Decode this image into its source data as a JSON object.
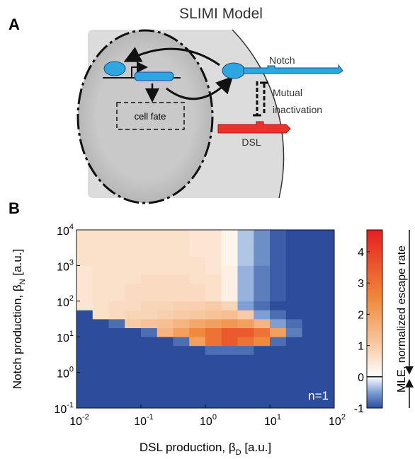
{
  "panel_a": {
    "label": "A",
    "title": "SLIMI Model",
    "cell_fate": "cell fate",
    "notch": "Notch",
    "mutual": "Mutual",
    "inactivation": "inactivation",
    "dsl": "DSL"
  },
  "chart_data": {
    "type": "heatmap",
    "panel_label": "B",
    "annotation": "n=1",
    "xlabel": {
      "text": "DSL production, β",
      "subscript": "D",
      "suffix": " [a.u.]"
    },
    "ylabel": {
      "text": "Notch production, β",
      "subscript": "N",
      "suffix": " [a.u.]"
    },
    "xscale": "log",
    "yscale": "log",
    "xlim": [
      0.01,
      100
    ],
    "ylim": [
      0.1,
      10000
    ],
    "xticks": [
      {
        "value": 0.01,
        "label": "10",
        "exponent": "-2"
      },
      {
        "value": 0.1,
        "label": "10",
        "exponent": "-1"
      },
      {
        "value": 1,
        "label": "10",
        "exponent": "0"
      },
      {
        "value": 10,
        "label": "10",
        "exponent": "1"
      },
      {
        "value": 100,
        "label": "10",
        "exponent": "2"
      }
    ],
    "yticks": [
      {
        "value": 0.1,
        "label": "10",
        "exponent": "-1"
      },
      {
        "value": 1,
        "label": "10",
        "exponent": "0"
      },
      {
        "value": 10,
        "label": "10",
        "exponent": "1"
      },
      {
        "value": 100,
        "label": "10",
        "exponent": "2"
      },
      {
        "value": 1000,
        "label": "10",
        "exponent": "3"
      },
      {
        "value": 10000,
        "label": "10",
        "exponent": "4"
      }
    ],
    "z": [
      [
        -1,
        -1,
        -1,
        -1,
        -1,
        -1,
        -1,
        -1,
        -1,
        -1,
        -1,
        -1,
        -1,
        -1,
        -1,
        -1
      ],
      [
        -1,
        -1,
        -1,
        -1,
        -1,
        -1,
        -1,
        -1,
        -1,
        -1,
        -1,
        -1,
        -1,
        -1,
        -1,
        -1
      ],
      [
        -1,
        -1,
        -1,
        -1,
        -1,
        -1,
        -1,
        -1,
        -1,
        -1,
        -1,
        -1,
        -1,
        -1,
        -1,
        -1
      ],
      [
        -1,
        -1,
        -1,
        -1,
        -1,
        -1,
        -1,
        -1,
        -1,
        -1,
        -1,
        -1,
        -1,
        -1,
        -1,
        -1
      ],
      [
        -1,
        -1,
        -1,
        -1,
        -1,
        -1,
        -1,
        -1,
        -1,
        -1,
        -1,
        -1,
        -1,
        -1,
        -1,
        -1
      ],
      [
        -1,
        -1,
        -1,
        -1,
        -1,
        -1,
        -1,
        -1,
        -1,
        -1,
        -1,
        -1,
        -1,
        -1,
        -1,
        -1
      ],
      [
        -1,
        -1,
        -1,
        -1,
        -1,
        -1,
        -1,
        -1,
        -0.8,
        -0.8,
        -0.8,
        -1,
        -1,
        -1,
        -1,
        -1
      ],
      [
        -1,
        -1,
        -1,
        -1,
        -1,
        -1,
        -0.8,
        2,
        3,
        3.5,
        3,
        2.5,
        -0.8,
        -1,
        -1,
        -1
      ],
      [
        -1,
        -1,
        -1,
        -1,
        -0.8,
        1.5,
        2,
        2.5,
        3,
        3.5,
        3.5,
        3,
        2,
        -0.7,
        -1,
        -1
      ],
      [
        -1,
        -1,
        -0.8,
        1,
        1.2,
        1.3,
        1.5,
        1.8,
        2,
        2.2,
        2,
        1.5,
        -0.5,
        -0.8,
        -1,
        -1
      ],
      [
        -1,
        0.6,
        0.7,
        0.8,
        0.8,
        0.9,
        1,
        1.1,
        1.2,
        1.3,
        1,
        -0.5,
        -0.8,
        -1,
        -1,
        -1
      ],
      [
        0.5,
        0.6,
        0.7,
        0.7,
        0.8,
        0.8,
        0.9,
        0.9,
        1,
        0.8,
        -0.5,
        -0.8,
        -1,
        -1,
        -1,
        -1
      ],
      [
        0.5,
        0.6,
        0.6,
        0.7,
        0.7,
        0.7,
        0.7,
        0.7,
        0.6,
        0.3,
        -0.4,
        -0.7,
        -0.9,
        -1,
        -1,
        -1
      ],
      [
        0.5,
        0.6,
        0.6,
        0.7,
        0.7,
        0.7,
        0.7,
        0.7,
        0.6,
        0.3,
        -0.4,
        -0.7,
        -0.9,
        -1,
        -1,
        -1
      ],
      [
        0.5,
        0.6,
        0.6,
        0.6,
        0.7,
        0.7,
        0.7,
        0.6,
        0.6,
        0.3,
        -0.4,
        -0.7,
        -0.9,
        -1,
        -1,
        -1
      ],
      [
        0.5,
        0.6,
        0.6,
        0.6,
        0.6,
        0.6,
        0.6,
        0.6,
        0.5,
        0.3,
        -0.4,
        -0.7,
        -0.9,
        -1,
        -1,
        -1
      ],
      [
        0.6,
        0.6,
        0.6,
        0.6,
        0.6,
        0.6,
        0.6,
        0.6,
        0.5,
        0.2,
        -0.3,
        -0.6,
        -0.9,
        -1,
        -1,
        -1
      ],
      [
        0.6,
        0.6,
        0.6,
        0.6,
        0.6,
        0.6,
        0.6,
        0.5,
        0.5,
        0.2,
        -0.3,
        -0.6,
        -0.9,
        -1,
        -1,
        -1
      ],
      [
        0.6,
        0.6,
        0.6,
        0.6,
        0.6,
        0.6,
        0.6,
        0.5,
        0.5,
        0.2,
        -0.3,
        -0.6,
        -0.9,
        -1,
        -1,
        -1
      ],
      [
        0.6,
        0.6,
        0.6,
        0.6,
        0.6,
        0.6,
        0.6,
        0.5,
        0.5,
        0.2,
        -0.3,
        -0.6,
        -0.9,
        -1,
        -1,
        -1
      ]
    ],
    "colorbar": {
      "label": "MLE, normalized escape rate",
      "lim": [
        -1,
        4.7
      ],
      "ticks": [
        -1,
        0,
        1,
        2,
        3,
        4
      ]
    },
    "colormap": [
      {
        "value": -1,
        "color": "#2c4d9c"
      },
      {
        "value": -0.5,
        "color": "#7d9fd3"
      },
      {
        "value": 0,
        "color": "#ffffff"
      },
      {
        "value": 1,
        "color": "#f8cba6"
      },
      {
        "value": 2.5,
        "color": "#ef8a3c"
      },
      {
        "value": 4.7,
        "color": "#e61f1f"
      }
    ]
  }
}
